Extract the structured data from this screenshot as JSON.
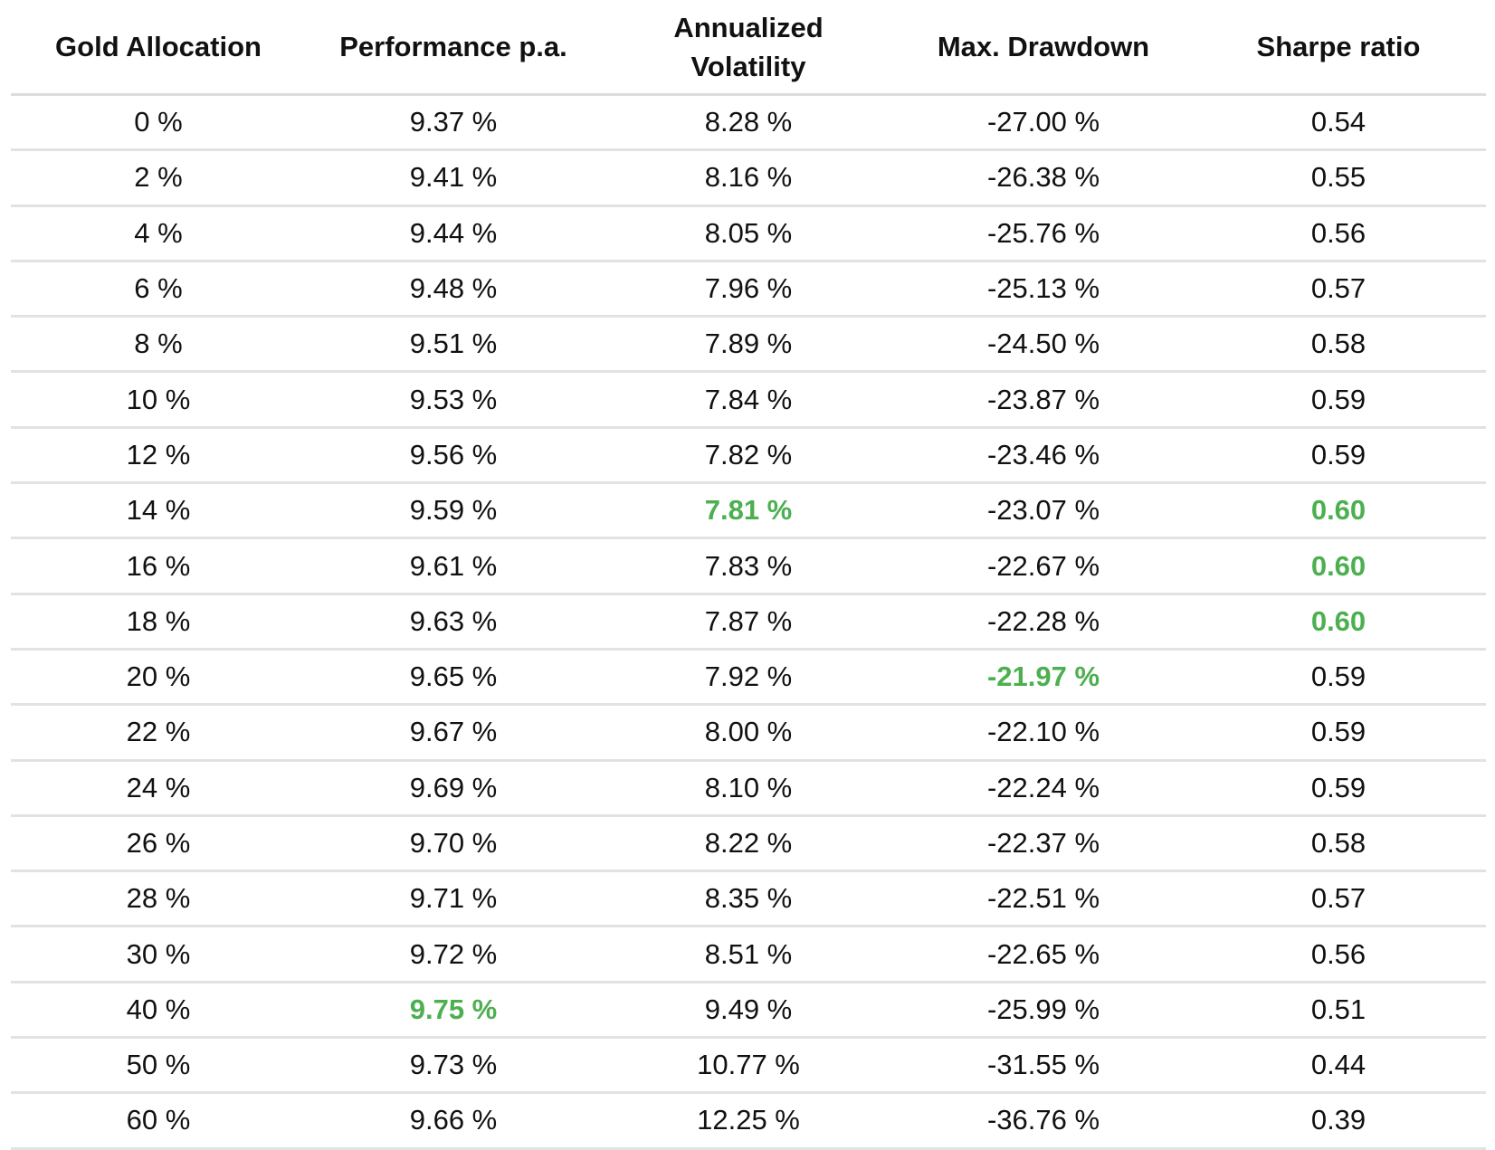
{
  "chart_data": {
    "type": "table",
    "columns": [
      "Gold Allocation",
      "Performance p.a.",
      "Annualized Volatility",
      "Max. Drawdown",
      "Sharpe ratio"
    ],
    "highlight_color": "#4caf50",
    "rows": [
      [
        "0 %",
        "9.37 %",
        "8.28 %",
        "-27.00 %",
        "0.54"
      ],
      [
        "2 %",
        "9.41 %",
        "8.16 %",
        "-26.38 %",
        "0.55"
      ],
      [
        "4 %",
        "9.44 %",
        "8.05 %",
        "-25.76 %",
        "0.56"
      ],
      [
        "6 %",
        "9.48 %",
        "7.96 %",
        "-25.13 %",
        "0.57"
      ],
      [
        "8 %",
        "9.51 %",
        "7.89 %",
        "-24.50 %",
        "0.58"
      ],
      [
        "10 %",
        "9.53 %",
        "7.84 %",
        "-23.87 %",
        "0.59"
      ],
      [
        "12 %",
        "9.56 %",
        "7.82 %",
        "-23.46 %",
        "0.59"
      ],
      [
        "14 %",
        "9.59 %",
        "7.81 %",
        "-23.07 %",
        "0.60"
      ],
      [
        "16 %",
        "9.61 %",
        "7.83 %",
        "-22.67 %",
        "0.60"
      ],
      [
        "18 %",
        "9.63 %",
        "7.87 %",
        "-22.28 %",
        "0.60"
      ],
      [
        "20 %",
        "9.65 %",
        "7.92 %",
        "-21.97 %",
        "0.59"
      ],
      [
        "22 %",
        "9.67 %",
        "8.00 %",
        "-22.10 %",
        "0.59"
      ],
      [
        "24 %",
        "9.69 %",
        "8.10 %",
        "-22.24 %",
        "0.59"
      ],
      [
        "26 %",
        "9.70 %",
        "8.22 %",
        "-22.37 %",
        "0.58"
      ],
      [
        "28 %",
        "9.71 %",
        "8.35 %",
        "-22.51 %",
        "0.57"
      ],
      [
        "30 %",
        "9.72 %",
        "8.51 %",
        "-22.65 %",
        "0.56"
      ],
      [
        "40 %",
        "9.75 %",
        "9.49 %",
        "-25.99 %",
        "0.51"
      ],
      [
        "50 %",
        "9.73 %",
        "10.77 %",
        "-31.55 %",
        "0.44"
      ],
      [
        "60 %",
        "9.66 %",
        "12.25 %",
        "-36.76 %",
        "0.39"
      ]
    ],
    "highlighted_cells": [
      {
        "row": 7,
        "col": 2
      },
      {
        "row": 7,
        "col": 4
      },
      {
        "row": 8,
        "col": 4
      },
      {
        "row": 9,
        "col": 4
      },
      {
        "row": 10,
        "col": 3
      },
      {
        "row": 16,
        "col": 1
      }
    ]
  }
}
